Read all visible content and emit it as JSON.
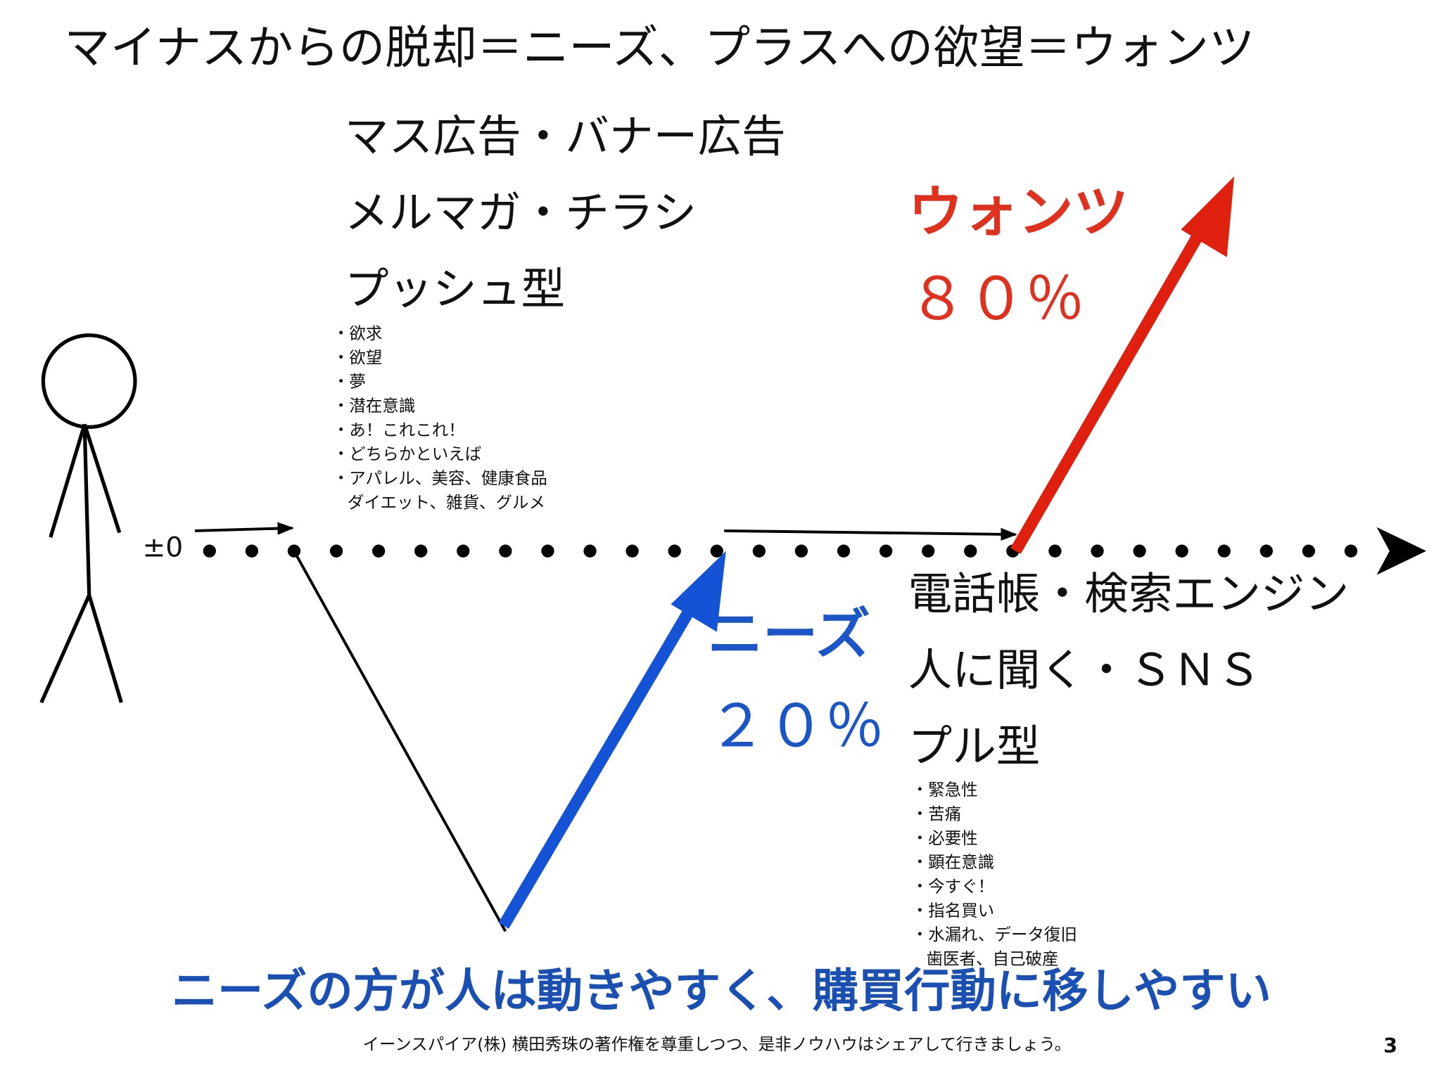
{
  "title": "マイナスからの脱却＝ニーズ、プラスへの欲望＝ウォンツ",
  "zero_label": "±0",
  "push": {
    "lines": [
      "マス広告・バナー広告",
      "メルマガ・チラシ",
      "プッシュ型"
    ],
    "items": [
      "・欲求",
      "・欲望",
      "・夢",
      "・潜在意識",
      "・あ！これこれ！",
      "・どちらかといえば",
      "・アパレル、美容、健康食品",
      "ダイエット、雑貨、グルメ"
    ]
  },
  "wants": {
    "label": "ウォンツ",
    "percent": "８０％"
  },
  "needs": {
    "label": "ニーズ",
    "percent": "２０％"
  },
  "pull": {
    "lines": [
      "電話帳・検索エンジン",
      "人に聞く・ＳＮＳ",
      "プル型"
    ],
    "items": [
      "・緊急性",
      "・苦痛",
      "・必要性",
      "・顕在意識",
      "・今すぐ！",
      "・指名買い",
      "・水漏れ、データ復旧",
      "歯医者、自己破産"
    ]
  },
  "conclusion": "ニーズの方が人は動きやすく、購買行動に移しやすい",
  "footer": "イーンスパイア(株) 横田秀珠の著作権を尊重しつつ、是非ノウハウはシェアして行きましょう。",
  "page_number": "3"
}
